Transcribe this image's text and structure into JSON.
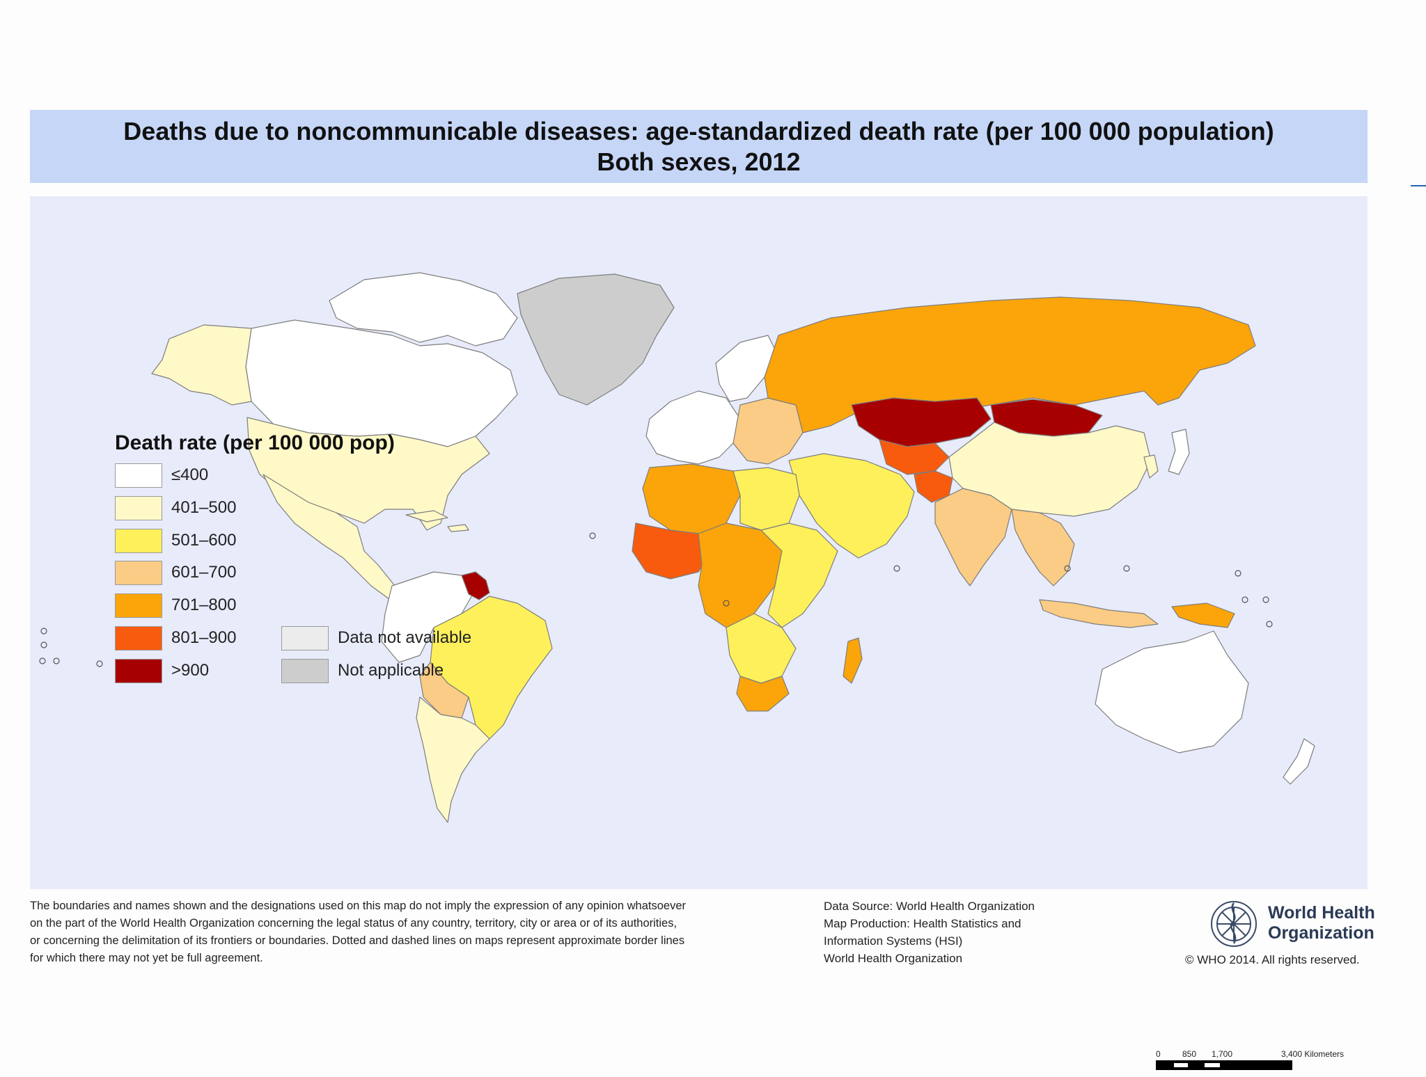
{
  "title": {
    "line1": "Deaths due to noncommunicable diseases: age-standardized death rate (per 100 000 population)",
    "line2": "Both sexes, 2012"
  },
  "colors": {
    "ocean": "#e8ebfa",
    "title_band": "#c5d6f7",
    "le400": "#ffffff",
    "r401_500": "#fff9c8",
    "r501_600": "#fdf05a",
    "r601_700": "#fbcc85",
    "r701_800": "#fba50a",
    "r801_900": "#f85b0d",
    "gt900": "#a70000",
    "no_data": "#ececec",
    "not_applicable": "#cdcdcd"
  },
  "legend": {
    "title": "Death rate (per 100 000 pop)",
    "items": [
      {
        "label": "≤400",
        "color": "#ffffff"
      },
      {
        "label": "401–500",
        "color": "#fff9c8"
      },
      {
        "label": "501–600",
        "color": "#fdf05a"
      },
      {
        "label": "601–700",
        "color": "#fbcc85"
      },
      {
        "label": "701–800",
        "color": "#fba50a"
      },
      {
        "label": "801–900",
        "color": "#f85b0d"
      },
      {
        "label": ">900",
        "color": "#a70000"
      }
    ],
    "extra": [
      {
        "label": "Data not available",
        "color": "#ececec"
      },
      {
        "label": "Not applicable",
        "color": "#cdcdcd"
      }
    ]
  },
  "scale": {
    "ticks": [
      "0",
      "850",
      "1,700",
      "3,400 Kilometers"
    ]
  },
  "regions": {
    "greenland": "not_applicable",
    "canada": "le400",
    "alaska_usa": "r401_500",
    "usa": "r401_500",
    "mexico_central_america": "r401_500",
    "south_america_north": "le400",
    "brazil": "r501_600",
    "bolivia": "r601_700",
    "argentina": "r401_500",
    "guyana": "gt900",
    "western_europe": "le400",
    "eastern_europe": "r601_700",
    "russia": "r701_800",
    "kazakhstan": "gt900",
    "mongolia": "gt900",
    "central_asia": "r801_900",
    "afghanistan": "r801_900",
    "china": "r401_500",
    "india": "r601_700",
    "middle_east": "r501_600",
    "north_africa_west": "r701_800",
    "north_africa_east": "r501_600",
    "west_africa_sahel": "r801_900",
    "central_africa": "r701_800",
    "east_africa": "r501_600",
    "southern_africa": "r501_600",
    "south_africa": "r701_800",
    "madagascar": "r701_800",
    "southeast_asia": "r601_700",
    "indonesia": "r601_700",
    "papua_new_guinea": "r701_800",
    "australia": "le400",
    "new_zealand": "le400",
    "japan": "le400",
    "korea": "r401_500"
  },
  "footer": {
    "disclaimer_lines": [
      "The boundaries and names shown and the designations used on this map do not imply the expression of any opinion whatsoever",
      "on the part of the World Health Organization concerning the legal status of any country, territory, city or area or of its authorities,",
      "or concerning the delimitation of its frontiers or boundaries. Dotted and dashed lines on maps represent approximate border lines",
      "for which there may not yet be full agreement."
    ],
    "source_lines": [
      "Data Source: World Health Organization",
      "Map Production: Health Statistics and",
      "Information Systems (HSI)",
      "World Health Organization"
    ],
    "who_name_line1": "World Health",
    "who_name_line2": "Organization",
    "copyright": "© WHO 2014. All rights reserved."
  }
}
